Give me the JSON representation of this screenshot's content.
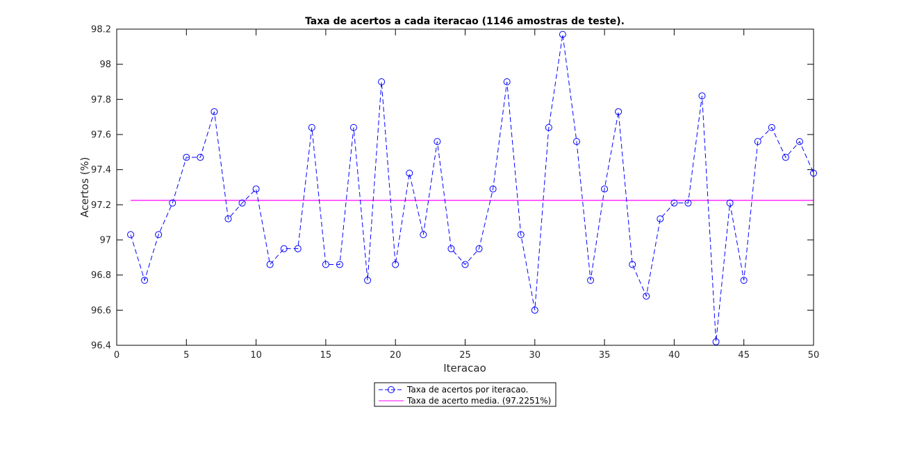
{
  "chart_data": {
    "type": "line",
    "title": "Taxa de acertos a cada iteracao (1146 amostras de teste).",
    "xlabel": "Iteracao",
    "ylabel": "Acertos (%)",
    "xlim": [
      0,
      50
    ],
    "ylim": [
      96.4,
      98.2
    ],
    "xticks": [
      0,
      5,
      10,
      15,
      20,
      25,
      30,
      35,
      40,
      45,
      50
    ],
    "yticks": [
      96.4,
      96.6,
      96.8,
      97,
      97.2,
      97.4,
      97.6,
      97.8,
      98,
      98.2
    ],
    "ytick_labels": [
      "96.4",
      "96.6",
      "96.8",
      "97",
      "97.2",
      "97.4",
      "97.6",
      "97.8",
      "98",
      "98.2"
    ],
    "grid": false,
    "legend_position": "bottom-center",
    "x": [
      1,
      2,
      3,
      4,
      5,
      6,
      7,
      8,
      9,
      10,
      11,
      12,
      13,
      14,
      15,
      16,
      17,
      18,
      19,
      20,
      21,
      22,
      23,
      24,
      25,
      26,
      27,
      28,
      29,
      30,
      31,
      32,
      33,
      34,
      35,
      36,
      37,
      38,
      39,
      40,
      41,
      42,
      43,
      44,
      45,
      46,
      47,
      48,
      49,
      50
    ],
    "series": [
      {
        "name": "Taxa de acertos por iteracao.",
        "color": "#0000ff",
        "line_style": "dashed",
        "marker": "circle",
        "values": [
          97.03,
          96.77,
          97.03,
          97.21,
          97.47,
          97.47,
          97.73,
          97.12,
          97.21,
          97.29,
          96.86,
          96.95,
          96.95,
          97.64,
          96.86,
          96.86,
          97.64,
          96.77,
          97.9,
          96.86,
          97.38,
          97.03,
          97.56,
          96.95,
          96.86,
          96.95,
          97.29,
          97.9,
          97.03,
          96.6,
          97.64,
          98.17,
          97.56,
          96.77,
          97.29,
          97.73,
          96.86,
          96.68,
          97.12,
          97.21,
          97.21,
          97.82,
          96.42,
          97.21,
          96.77,
          97.56,
          97.64,
          97.47,
          97.56,
          97.38
        ]
      },
      {
        "name": "Taxa de acerto media. (97.2251%)",
        "color": "#ff00ff",
        "line_style": "solid",
        "marker": "none",
        "constant": 97.2251
      }
    ]
  }
}
